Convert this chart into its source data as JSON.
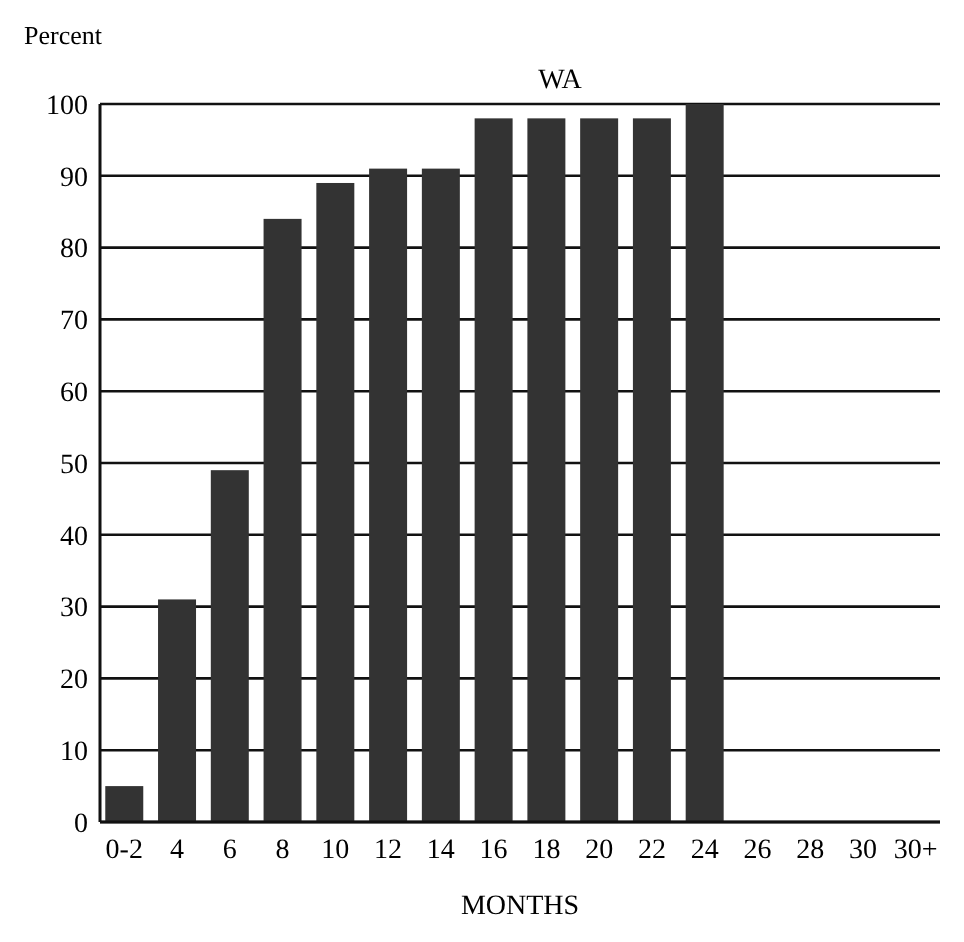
{
  "chart_data": {
    "type": "bar",
    "title": "WA",
    "xlabel": "MONTHS",
    "ylabel": "Percent",
    "categories": [
      "0-2",
      "4",
      "6",
      "8",
      "10",
      "12",
      "14",
      "16",
      "18",
      "20",
      "22",
      "24",
      "26",
      "28",
      "30",
      "30+"
    ],
    "values": [
      5,
      31,
      49,
      84,
      89,
      91,
      91,
      98,
      98,
      98,
      98,
      100,
      null,
      null,
      null,
      null
    ],
    "color": "#333333",
    "ylim": [
      0,
      100
    ],
    "yticks": [
      0,
      10,
      20,
      30,
      40,
      50,
      60,
      70,
      80,
      90,
      100
    ],
    "grid": "y"
  }
}
